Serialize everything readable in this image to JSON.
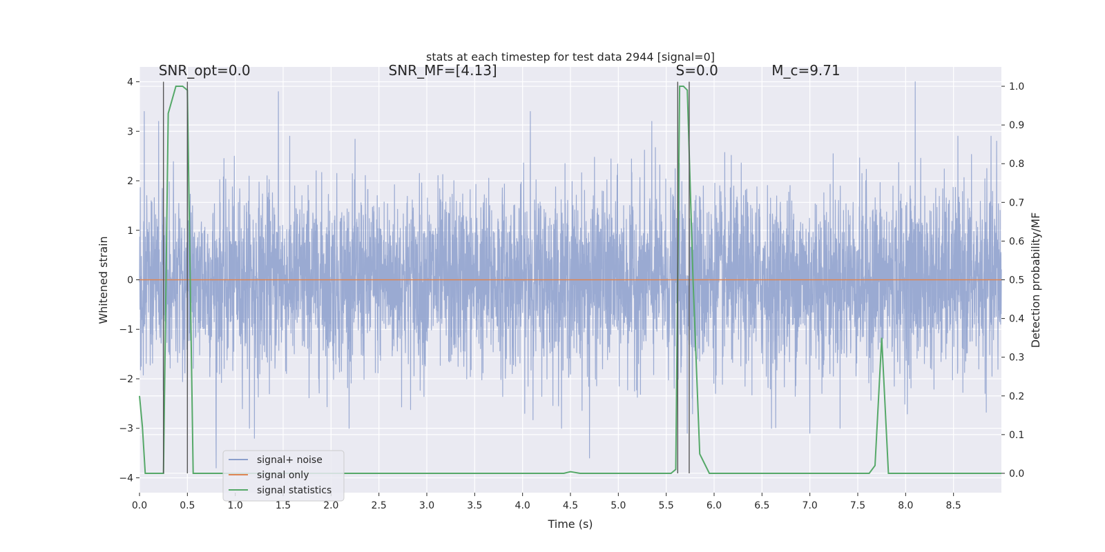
{
  "chart_data": {
    "type": "line",
    "title": "stats at each timestep for test data 2944 [signal=0]",
    "xlabel": "Time (s)",
    "ylabel": "Whitened strain",
    "ylabel_right": "Detection probability/MF",
    "xlim": [
      0,
      9.0
    ],
    "ylim": [
      -4.3,
      4.3
    ],
    "ylim_right": [
      -0.05,
      1.05
    ],
    "x_ticks": [
      0.0,
      0.5,
      1.0,
      1.5,
      2.0,
      2.5,
      3.0,
      3.5,
      4.0,
      4.5,
      5.0,
      5.5,
      6.0,
      6.5,
      7.0,
      7.5,
      8.0,
      8.5
    ],
    "x_tick_labels": [
      "0.0",
      "0.5",
      "1.0",
      "1.5",
      "2.0",
      "2.5",
      "3.0",
      "3.5",
      "4.0",
      "4.5",
      "5.0",
      "5.5",
      "6.0",
      "6.5",
      "7.0",
      "7.5",
      "8.0",
      "8.5"
    ],
    "y_ticks": [
      -4,
      -3,
      -2,
      -1,
      0,
      1,
      2,
      3,
      4
    ],
    "y_tick_labels": [
      "−4",
      "−3",
      "−2",
      "−1",
      "0",
      "1",
      "2",
      "3",
      "4"
    ],
    "y_ticks_right": [
      0.0,
      0.1,
      0.2,
      0.3,
      0.4,
      0.5,
      0.6,
      0.7,
      0.8,
      0.9,
      1.0
    ],
    "y_tick_labels_right": [
      "0.0",
      "0.1",
      "0.2",
      "0.3",
      "0.4",
      "0.5",
      "0.6",
      "0.7",
      "0.8",
      "0.9",
      "1.0"
    ],
    "grid": true,
    "annotations": [
      {
        "id": "snr-opt",
        "text": "SNR_opt=0.0",
        "x": 0.2,
        "y": 4.13
      },
      {
        "id": "snr-mf",
        "text": "SNR_MF=[4.13]",
        "x": 2.6,
        "y": 4.13
      },
      {
        "id": "s-val",
        "text": "S=0.0",
        "x": 5.6,
        "y": 4.13
      },
      {
        "id": "mc-val",
        "text": "M_c=9.71",
        "x": 6.6,
        "y": 4.13
      }
    ],
    "vlines": [
      0.25,
      0.5,
      5.62,
      5.74
    ],
    "vline_ymax": 4.0,
    "legend": {
      "position": "lower-left",
      "entries": [
        {
          "label": "signal+ noise",
          "color": "#8c9fcc"
        },
        {
          "label": "signal only",
          "color": "#dd8452"
        },
        {
          "label": "signal statistics",
          "color": "#55a868"
        }
      ]
    },
    "series": [
      {
        "name": "signal+ noise",
        "axis": "left",
        "style": "noise",
        "color": "#8c9fcc",
        "sigma": 0.9,
        "duration": 9.0,
        "peaks": [
          [
            0.05,
            3.4
          ],
          [
            0.2,
            3.2
          ],
          [
            0.5,
            3.4
          ],
          [
            1.45,
            3.8
          ],
          [
            4.08,
            3.4
          ],
          [
            5.35,
            3.2
          ],
          [
            7.0,
            3.1
          ],
          [
            8.1,
            4.0
          ],
          [
            8.95,
            2.8
          ],
          [
            0.8,
            -3.8
          ],
          [
            1.2,
            -3.2
          ],
          [
            4.7,
            -3.6
          ],
          [
            5.72,
            -3.1
          ],
          [
            7.0,
            -3.1
          ],
          [
            6.6,
            -3.0
          ]
        ]
      },
      {
        "name": "signal only",
        "axis": "left",
        "color": "#dd8452",
        "x": [
          0.0,
          9.0
        ],
        "y": [
          0.0,
          0.0
        ]
      },
      {
        "name": "signal statistics",
        "axis": "right",
        "color": "#55a868",
        "x": [
          0.0,
          0.03,
          0.06,
          0.25,
          0.3,
          0.38,
          0.45,
          0.5,
          0.56,
          0.62,
          0.7,
          0.8,
          4.43,
          4.5,
          4.6,
          5.55,
          5.6,
          5.64,
          5.68,
          5.72,
          5.78,
          5.85,
          5.95,
          6.1,
          7.62,
          7.68,
          7.75,
          7.82,
          7.9,
          9.0
        ],
        "y": [
          0.2,
          0.12,
          0.0,
          0.0,
          0.93,
          1.0,
          1.0,
          0.99,
          0.0,
          0.0,
          0.0,
          0.0,
          0.0,
          0.004,
          0.0,
          0.0,
          0.01,
          1.0,
          1.0,
          0.99,
          0.5,
          0.05,
          0.0,
          0.0,
          0.0,
          0.02,
          0.35,
          0.0,
          0.0,
          0.0
        ]
      }
    ]
  }
}
